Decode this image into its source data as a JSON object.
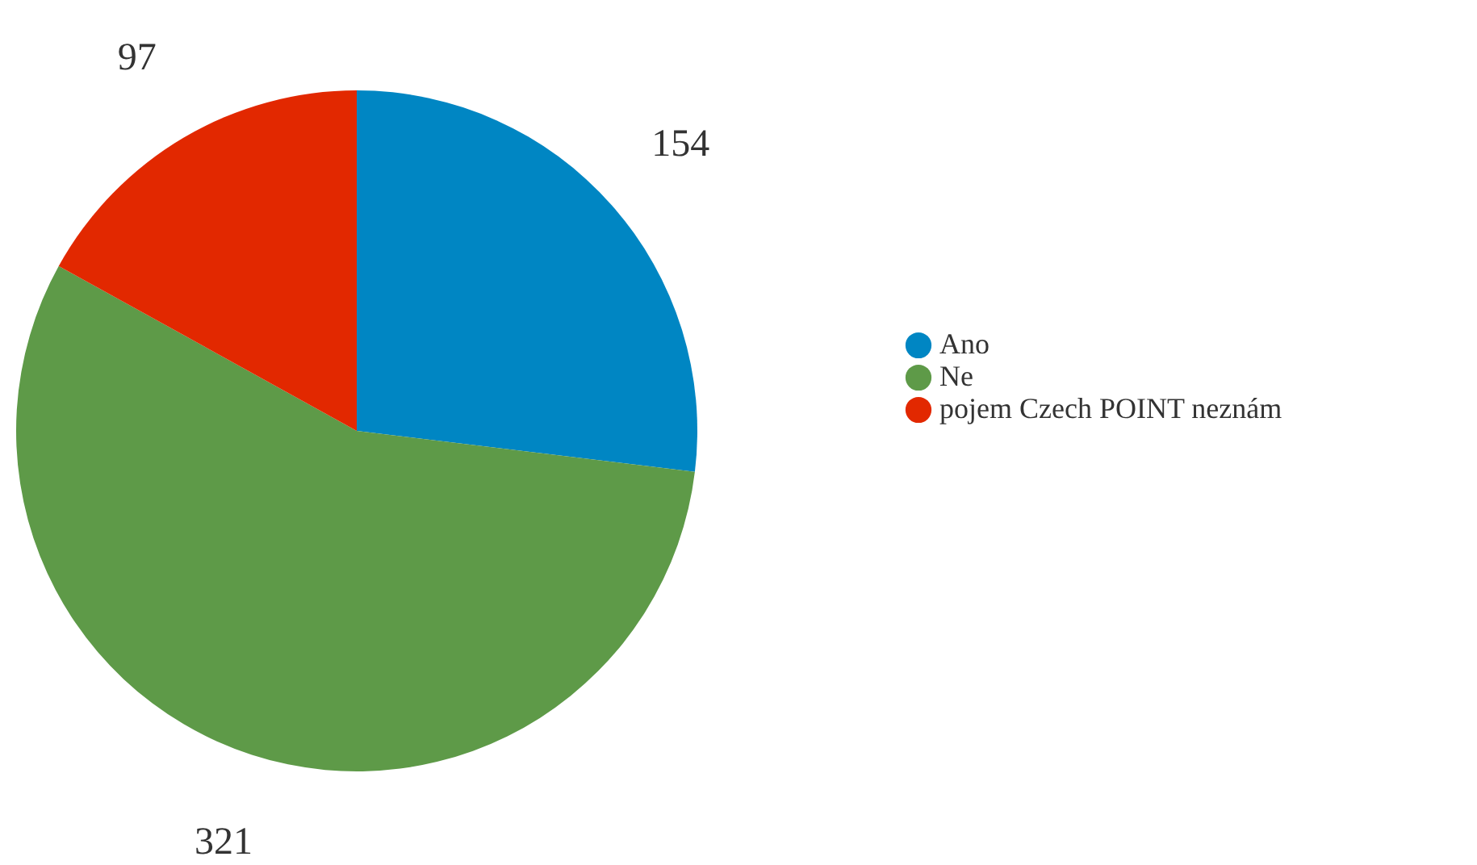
{
  "chart_data": {
    "type": "pie",
    "categories": [
      "Ano",
      "Ne",
      "pojem Czech POINT neznám"
    ],
    "values": [
      154,
      321,
      97
    ],
    "colors": [
      "#0086c3",
      "#5e9a48",
      "#e22800"
    ],
    "data_labels": true,
    "legend": "right"
  }
}
